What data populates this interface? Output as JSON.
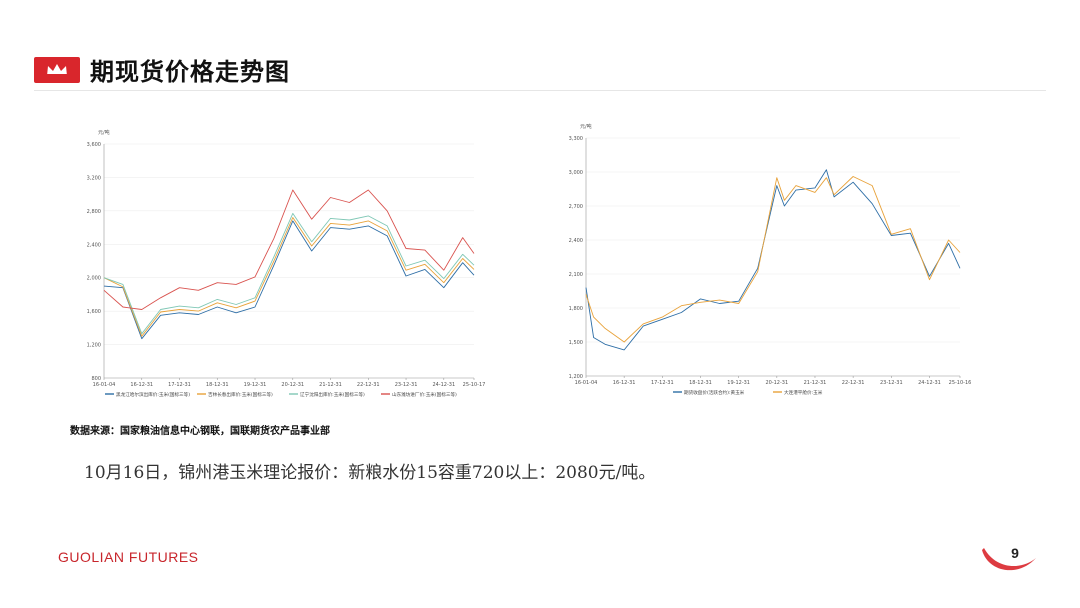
{
  "header": {
    "title": "期现货价格走势图"
  },
  "source_note": "数据来源：国家粮油信息中心钢联，国联期货农产品事业部",
  "price_note": "10月16日，锦州港玉米理论报价：新粮水份15容重720以上：2080元/吨。",
  "footer": {
    "brand": "GUOLIAN FUTURES",
    "page_number": "9"
  },
  "colors": {
    "accent": "#d9262c"
  },
  "chart_data": [
    {
      "type": "line",
      "unit_label": "元/吨",
      "ylim": [
        800,
        3600
      ],
      "yticks": [
        800,
        1200,
        1600,
        2000,
        2400,
        2800,
        3200,
        3600
      ],
      "ytick_labels": [
        "800",
        "1,200",
        "1,600",
        "2,000",
        "2,400",
        "2,800",
        "3,200",
        "3,600"
      ],
      "xlim": [
        0,
        9.8
      ],
      "xticks": [
        0,
        1,
        2,
        3,
        4,
        5,
        6,
        7,
        8,
        9,
        9.8
      ],
      "xtick_labels": [
        "16-01-04",
        "16-12-31",
        "17-12-31",
        "18-12-31",
        "19-12-31",
        "20-12-31",
        "21-12-31",
        "22-12-31",
        "23-12-31",
        "24-12-31",
        "25-10-17"
      ],
      "grid": true,
      "legend_position": "bottom",
      "series": [
        {
          "name": "黑龙江哈尔滨出库价:玉米(国标三等)",
          "color": "#2e6ea6",
          "x": [
            0,
            0.5,
            1.0,
            1.5,
            2.0,
            2.5,
            3.0,
            3.5,
            4.0,
            4.5,
            5.0,
            5.5,
            6.0,
            6.5,
            7.0,
            7.5,
            8.0,
            8.5,
            9.0,
            9.5,
            9.8
          ],
          "y": [
            1900,
            1880,
            1270,
            1550,
            1580,
            1560,
            1650,
            1580,
            1650,
            2150,
            2680,
            2320,
            2600,
            2580,
            2620,
            2500,
            2020,
            2100,
            1880,
            2180,
            2030
          ]
        },
        {
          "name": "吉林长春出库价:玉米(国标三等)",
          "color": "#e8a23a",
          "x": [
            0,
            0.5,
            1.0,
            1.5,
            2.0,
            2.5,
            3.0,
            3.5,
            4.0,
            4.5,
            5.0,
            5.5,
            6.0,
            6.5,
            7.0,
            7.5,
            8.0,
            8.5,
            9.0,
            9.5,
            9.8
          ],
          "y": [
            2000,
            1890,
            1300,
            1590,
            1620,
            1600,
            1700,
            1640,
            1720,
            2200,
            2720,
            2380,
            2650,
            2630,
            2680,
            2560,
            2090,
            2160,
            1940,
            2230,
            2100
          ]
        },
        {
          "name": "辽宁沈阳出库价:玉米(国标三等)",
          "color": "#7fc7b5",
          "x": [
            0,
            0.5,
            1.0,
            1.5,
            2.0,
            2.5,
            3.0,
            3.5,
            4.0,
            4.5,
            5.0,
            5.5,
            6.0,
            6.5,
            7.0,
            7.5,
            8.0,
            8.5,
            9.0,
            9.5,
            9.8
          ],
          "y": [
            2000,
            1920,
            1330,
            1620,
            1660,
            1640,
            1740,
            1680,
            1760,
            2250,
            2770,
            2430,
            2710,
            2690,
            2740,
            2620,
            2140,
            2210,
            1990,
            2280,
            2150
          ]
        },
        {
          "name": "山东潍坊进厂价:玉米(国标三等)",
          "color": "#d9534f",
          "x": [
            0,
            0.5,
            1.0,
            1.5,
            2.0,
            2.5,
            3.0,
            3.5,
            4.0,
            4.5,
            5.0,
            5.5,
            6.0,
            6.5,
            7.0,
            7.5,
            8.0,
            8.5,
            9.0,
            9.5,
            9.8
          ],
          "y": [
            1850,
            1650,
            1620,
            1760,
            1880,
            1850,
            1940,
            1920,
            2010,
            2470,
            3050,
            2700,
            2960,
            2900,
            3050,
            2800,
            2350,
            2330,
            2090,
            2480,
            2290
          ]
        }
      ]
    },
    {
      "type": "line",
      "unit_label": "元/吨",
      "ylim": [
        1200,
        3300
      ],
      "yticks": [
        1200,
        1500,
        1800,
        2100,
        2400,
        2700,
        3000,
        3300
      ],
      "ytick_labels": [
        "1,200",
        "1,500",
        "1,800",
        "2,100",
        "2,400",
        "2,700",
        "3,000",
        "3,300"
      ],
      "xlim": [
        0,
        9.8
      ],
      "xticks": [
        0,
        1,
        2,
        3,
        4,
        5,
        6,
        7,
        8,
        9,
        9.8
      ],
      "xtick_labels": [
        "16-01-04",
        "16-12-31",
        "17-12-31",
        "18-12-31",
        "19-12-31",
        "20-12-31",
        "21-12-31",
        "22-12-31",
        "23-12-31",
        "24-12-31",
        "25-10-16"
      ],
      "grid": true,
      "legend_position": "bottom",
      "series": [
        {
          "name": "期货收盘价(活跃合约):黄玉米",
          "color": "#2e6ea6",
          "x": [
            0,
            0.2,
            0.5,
            1.0,
            1.5,
            2.0,
            2.5,
            3.0,
            3.5,
            4.0,
            4.5,
            5.0,
            5.2,
            5.5,
            6.0,
            6.3,
            6.5,
            7.0,
            7.5,
            8.0,
            8.5,
            9.0,
            9.5,
            9.8
          ],
          "y": [
            1980,
            1540,
            1480,
            1430,
            1640,
            1700,
            1760,
            1880,
            1840,
            1860,
            2150,
            2880,
            2700,
            2840,
            2860,
            3020,
            2780,
            2910,
            2720,
            2440,
            2460,
            2080,
            2370,
            2150
          ]
        },
        {
          "name": "大连港平舱价:玉米",
          "color": "#e8a23a",
          "x": [
            0,
            0.2,
            0.5,
            1.0,
            1.5,
            2.0,
            2.5,
            3.0,
            3.5,
            4.0,
            4.5,
            5.0,
            5.2,
            5.5,
            6.0,
            6.3,
            6.5,
            7.0,
            7.5,
            8.0,
            8.5,
            9.0,
            9.5,
            9.8
          ],
          "y": [
            1920,
            1720,
            1620,
            1500,
            1660,
            1720,
            1820,
            1850,
            1870,
            1840,
            2120,
            2950,
            2750,
            2880,
            2820,
            2950,
            2800,
            2960,
            2880,
            2450,
            2500,
            2050,
            2400,
            2290
          ]
        }
      ]
    }
  ]
}
